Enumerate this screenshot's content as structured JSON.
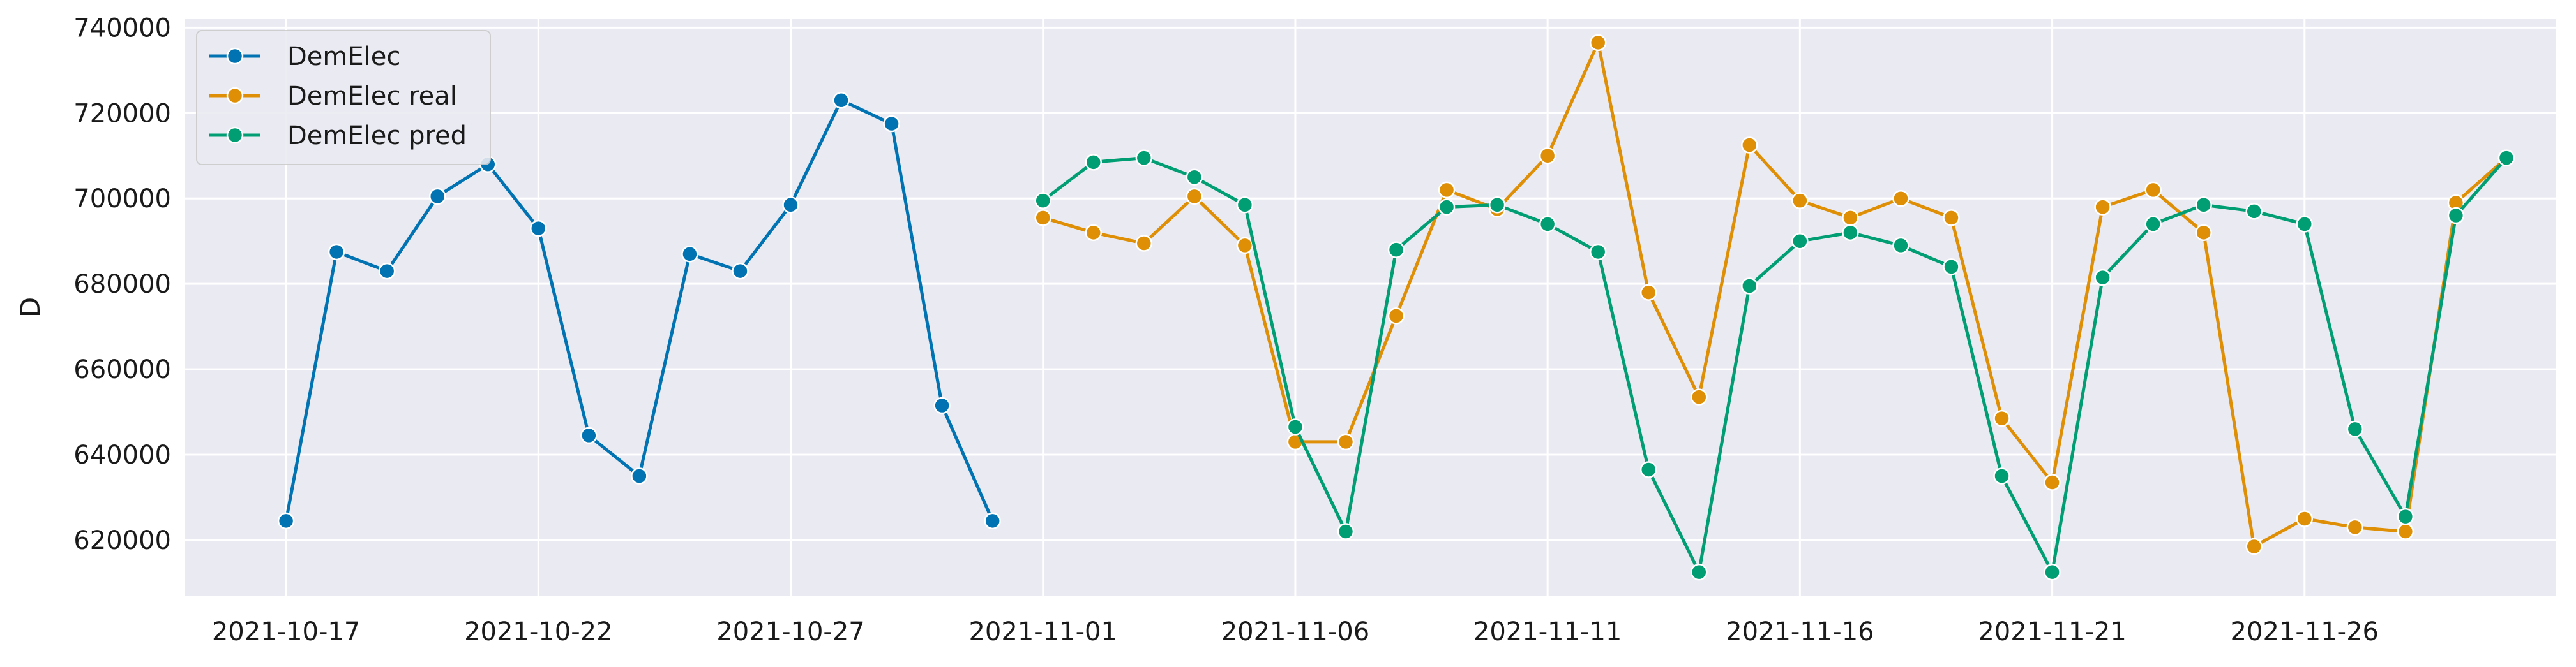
{
  "chart_data": {
    "type": "line",
    "title": "",
    "xlabel": "",
    "ylabel": "D",
    "grid": true,
    "legend_position": "top-left",
    "x_ticks": [
      "2021-10-17",
      "2021-10-22",
      "2021-10-27",
      "2021-11-01",
      "2021-11-06",
      "2021-11-11",
      "2021-11-16",
      "2021-11-21",
      "2021-11-26"
    ],
    "y_ticks": [
      620000,
      640000,
      660000,
      680000,
      700000,
      720000,
      740000
    ],
    "y_tick_labels": [
      "620000",
      "640000",
      "660000",
      "680000",
      "700000",
      "720000",
      "740000"
    ],
    "ylim": [
      607000,
      742000
    ],
    "xlim": [
      "2021-10-15",
      "2021-12-01"
    ],
    "series": [
      {
        "name": "DemElec",
        "color": "#0173b2",
        "start": "2021-10-17",
        "values": [
          624500,
          687500,
          683000,
          700500,
          708000,
          693000,
          644500,
          635000,
          687000,
          683000,
          698500,
          723000,
          717500,
          651500,
          624500
        ]
      },
      {
        "name": "DemElec real",
        "color": "#de8f05",
        "start": "2021-11-01",
        "values": [
          695500,
          692000,
          689500,
          700500,
          689000,
          643000,
          643000,
          672500,
          702000,
          697500,
          710000,
          736500,
          678000,
          653500,
          712500,
          699500,
          695500,
          700000,
          695500,
          648500,
          633500,
          698000,
          702000,
          692000,
          618500,
          625000,
          623000,
          622000,
          699000,
          709500
        ]
      },
      {
        "name": "DemElec pred",
        "color": "#029e73",
        "start": "2021-11-01",
        "values": [
          699500,
          708500,
          709500,
          705000,
          698500,
          646500,
          622000,
          688000,
          698000,
          698500,
          694000,
          687500,
          636500,
          612500,
          679500,
          690000,
          692000,
          689000,
          684000,
          635000,
          612500,
          681500,
          694000,
          698500,
          697000,
          694000,
          646000,
          625500,
          696000,
          709500
        ]
      }
    ]
  }
}
